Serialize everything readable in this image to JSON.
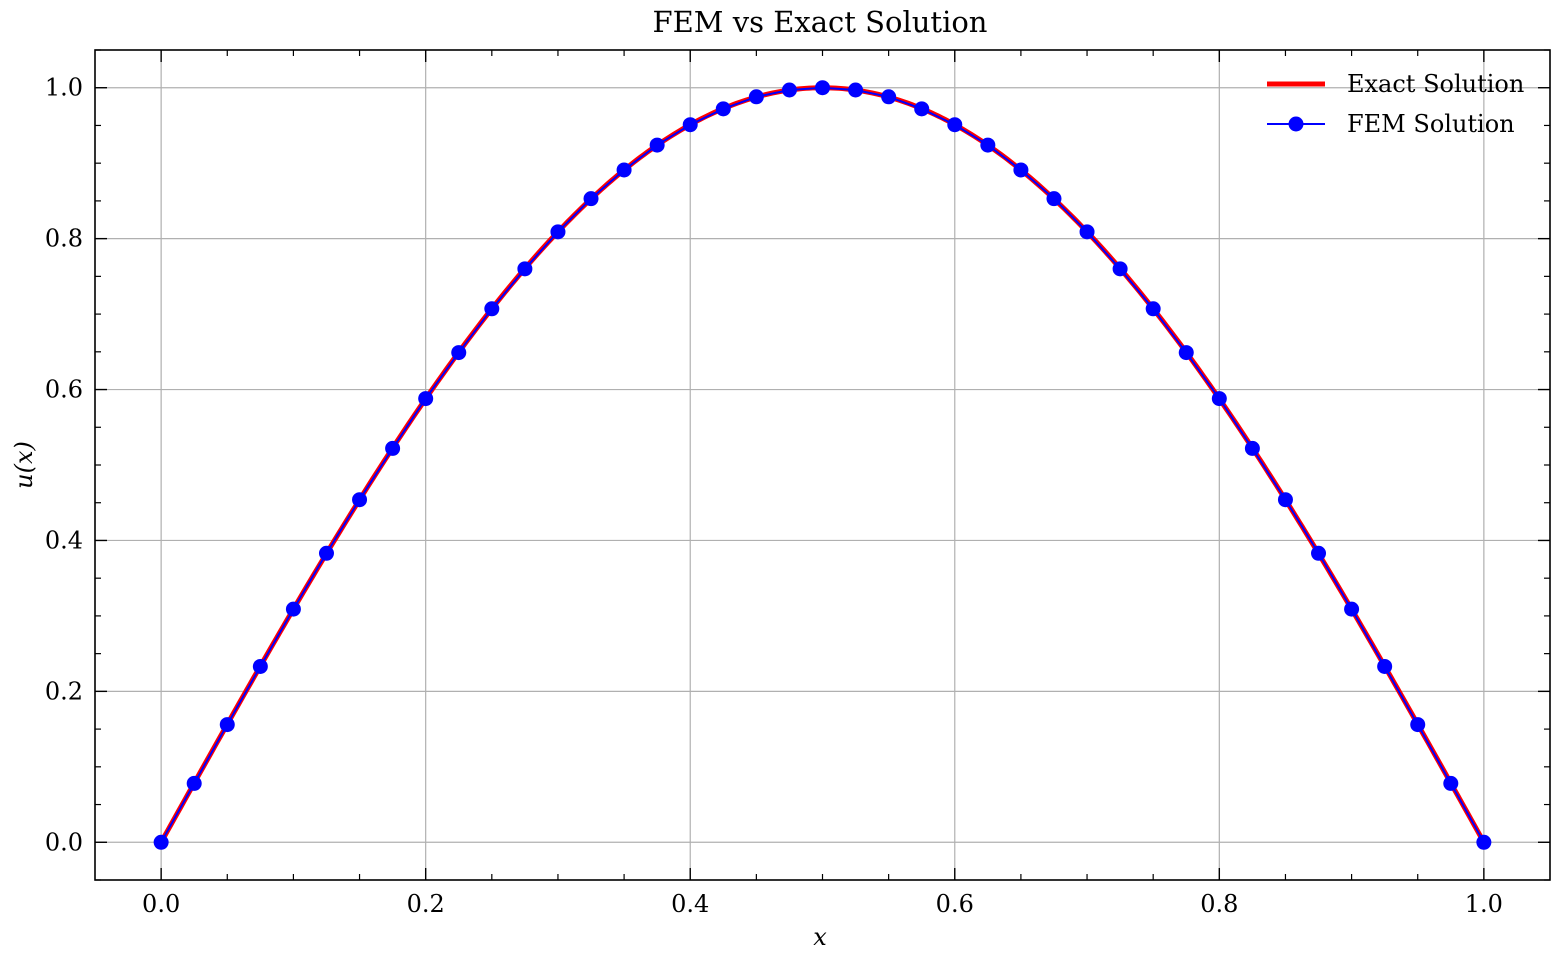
{
  "chart_data": {
    "type": "line",
    "title": "FEM vs Exact Solution",
    "xlabel": "x",
    "ylabel": "u(x)",
    "xlim": [
      -0.05,
      1.05
    ],
    "ylim": [
      -0.05,
      1.05
    ],
    "xticks": [
      0.0,
      0.2,
      0.4,
      0.6,
      0.8,
      1.0
    ],
    "yticks": [
      0.0,
      0.2,
      0.4,
      0.6,
      0.8,
      1.0
    ],
    "xtick_labels": [
      "0.0",
      "0.2",
      "0.4",
      "0.6",
      "0.8",
      "1.0"
    ],
    "ytick_labels": [
      "0.0",
      "0.2",
      "0.4",
      "0.6",
      "0.8",
      "1.0"
    ],
    "grid": true,
    "legend_position": "top-right",
    "series": [
      {
        "name": "Exact Solution",
        "style": "line",
        "color": "#ff0000",
        "function": "sin(pi*x)",
        "x_range": [
          0.0,
          1.0
        ]
      },
      {
        "name": "FEM Solution",
        "style": "line-with-markers",
        "color": "#0000ff",
        "x": [
          0.0,
          0.025,
          0.05,
          0.075,
          0.1,
          0.125,
          0.15,
          0.175,
          0.2,
          0.225,
          0.25,
          0.275,
          0.3,
          0.325,
          0.35,
          0.375,
          0.4,
          0.425,
          0.45,
          0.475,
          0.5,
          0.525,
          0.55,
          0.575,
          0.6,
          0.625,
          0.65,
          0.675,
          0.7,
          0.725,
          0.75,
          0.775,
          0.8,
          0.825,
          0.85,
          0.875,
          0.9,
          0.925,
          0.95,
          0.975,
          1.0
        ],
        "y": [
          0.0,
          0.078,
          0.156,
          0.233,
          0.309,
          0.383,
          0.454,
          0.522,
          0.588,
          0.649,
          0.707,
          0.76,
          0.809,
          0.853,
          0.891,
          0.924,
          0.951,
          0.972,
          0.988,
          0.997,
          1.0,
          0.997,
          0.988,
          0.972,
          0.951,
          0.924,
          0.891,
          0.853,
          0.809,
          0.76,
          0.707,
          0.649,
          0.588,
          0.522,
          0.454,
          0.383,
          0.309,
          0.233,
          0.156,
          0.078,
          0.0
        ]
      }
    ]
  }
}
